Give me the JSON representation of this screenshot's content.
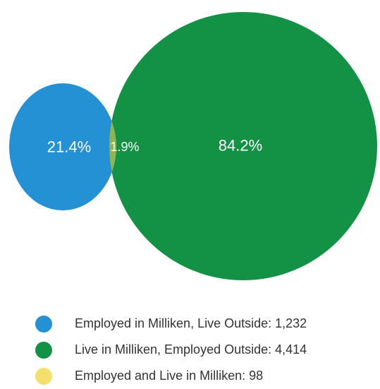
{
  "venn": {
    "sets": [
      {
        "key": "employed_outside",
        "label": "21.4%",
        "color": "#2491d5"
      },
      {
        "key": "live_outside",
        "label": "84.2%",
        "color": "#139245"
      }
    ],
    "overlap": {
      "label": "1.9%",
      "color": "#8fb452"
    }
  },
  "legend": {
    "items": [
      {
        "label": "Employed in Milliken, Live Outside: 1,232",
        "color": "#2491d5"
      },
      {
        "label": "Live in Milliken, Employed Outside: 4,414",
        "color": "#139245"
      },
      {
        "label": "Employed and Live in Milliken: 98",
        "color": "#f4df6b"
      }
    ]
  }
}
